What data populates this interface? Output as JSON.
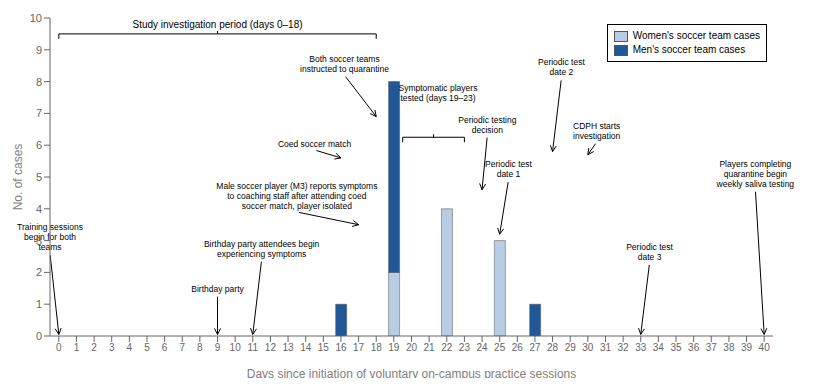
{
  "chart_data": {
    "type": "bar",
    "stacked": true,
    "grid": false,
    "legend": "upper right",
    "xlabel": "Days since initiation of voluntary on-campus practice sessions",
    "ylabel": "No. of cases",
    "x": [
      0,
      1,
      2,
      3,
      4,
      5,
      6,
      7,
      8,
      9,
      10,
      11,
      12,
      13,
      14,
      15,
      16,
      17,
      18,
      19,
      20,
      21,
      22,
      23,
      24,
      25,
      26,
      27,
      28,
      29,
      30,
      31,
      32,
      33,
      34,
      35,
      36,
      37,
      38,
      39,
      40
    ],
    "series": [
      {
        "name": "Women's soccer team cases",
        "color": "#b8cce4",
        "values": [
          0,
          0,
          0,
          0,
          0,
          0,
          0,
          0,
          0,
          0,
          0,
          0,
          0,
          0,
          0,
          0,
          0,
          0,
          0,
          2,
          0,
          0,
          4,
          0,
          0,
          3,
          0,
          0,
          0,
          0,
          0,
          0,
          0,
          0,
          0,
          0,
          0,
          0,
          0,
          0,
          0
        ]
      },
      {
        "name": "Men's soccer team cases",
        "color": "#1f5799",
        "values": [
          0,
          0,
          0,
          0,
          0,
          0,
          0,
          0,
          0,
          0,
          0,
          0,
          0,
          0,
          0,
          0,
          1,
          0,
          0,
          6,
          0,
          0,
          0,
          0,
          0,
          0,
          0,
          1,
          0,
          0,
          0,
          0,
          0,
          0,
          0,
          0,
          0,
          0,
          0,
          0,
          0
        ]
      }
    ],
    "xlim": [
      -0.5,
      40.5
    ],
    "xticks": [
      0,
      1,
      2,
      3,
      4,
      5,
      6,
      7,
      8,
      9,
      10,
      11,
      12,
      13,
      14,
      15,
      16,
      17,
      18,
      19,
      20,
      21,
      22,
      23,
      24,
      25,
      26,
      27,
      28,
      29,
      30,
      31,
      32,
      33,
      34,
      35,
      36,
      37,
      38,
      39,
      40
    ],
    "ylim": [
      0,
      10
    ],
    "yticks": [
      0,
      1,
      2,
      3,
      4,
      5,
      6,
      7,
      8,
      9,
      10
    ],
    "annotations": [
      {
        "text": "Training sessions\nbegin for both\nteams",
        "x": 0,
        "y": 0.05,
        "text_x": -0.5,
        "text_y": 2.6
      },
      {
        "text": "Birthday party",
        "x": 9,
        "y": 0.05,
        "text_x": 9,
        "text_y": 1.3
      },
      {
        "text": "Birthday party attendees begin\nexperiencing symptoms",
        "x": 11,
        "y": 0.05,
        "text_x": 11.5,
        "text_y": 2.4
      },
      {
        "text": "Coed soccer match",
        "x": 16,
        "y": 5.6,
        "text_x": 14.5,
        "text_y": 5.85
      },
      {
        "text": "Male soccer player (M3) reports symptoms\nto coaching staff after attending coed\nsoccer match, player isolated",
        "x": 17,
        "y": 3.5,
        "text_x": 13.5,
        "text_y": 3.9
      },
      {
        "text": "Both soccer teams\ninstructed to quarantine",
        "x": 18,
        "y": 6.9,
        "text_x": 16.2,
        "text_y": 8.2
      },
      {
        "text": "Symptomatic players\ntested (days 19–23)",
        "text_x": 21.5,
        "text_y": 7.3
      },
      {
        "text": "Periodic testing\ndecision",
        "x": 24,
        "y": 4.6,
        "text_x": 24.3,
        "text_y": 6.3
      },
      {
        "text": "Periodic test\ndate 1",
        "x": 25,
        "y": 3.2,
        "text_x": 25.5,
        "text_y": 4.9
      },
      {
        "text": "Periodic test\ndate 2",
        "x": 28,
        "y": 5.8,
        "text_x": 28.5,
        "text_y": 8.1
      },
      {
        "text": "CDPH starts\ninvestigation",
        "x": 30,
        "y": 5.7,
        "text_x": 30.5,
        "text_y": 6.1
      },
      {
        "text": "Periodic test\ndate 3",
        "x": 33,
        "y": 0.05,
        "text_x": 33.5,
        "text_y": 2.3
      },
      {
        "text": "Players completing\nquarantine begin\nweekly saliva testing",
        "x": 40,
        "y": 0.05,
        "text_x": 39.5,
        "text_y": 4.6
      }
    ],
    "brackets": [
      {
        "x_start": 19.5,
        "x_end": 23.0,
        "y": 6.25
      },
      {
        "x_start": 0,
        "x_end": 18,
        "y": 9.5,
        "text": "Study investigation period (days 0–18)"
      }
    ]
  }
}
